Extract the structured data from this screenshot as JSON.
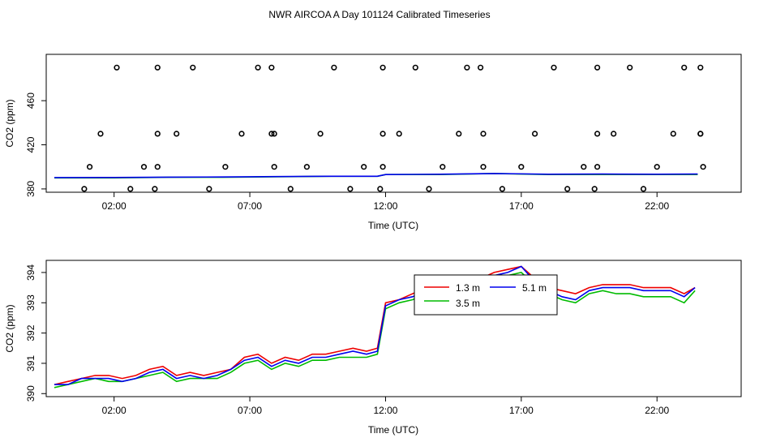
{
  "page_title": "NWR AIRCOA A  Day 101124  Calibrated Timeseries",
  "colors": {
    "red": "#ee0000",
    "green": "#00bb00",
    "blue": "#0000ee",
    "axis": "#000000"
  },
  "chart_data": [
    {
      "type": "scatter",
      "title": "",
      "xlabel": "Time (UTC)",
      "ylabel": "CO2 (ppm)",
      "xlim": [
        -0.5,
        25.1
      ],
      "ylim": [
        377,
        502
      ],
      "xticks": [
        2,
        7,
        12,
        17,
        22
      ],
      "xtick_labels": [
        "02:00",
        "07:00",
        "12:00",
        "17:00",
        "22:00"
      ],
      "yticks": [
        380,
        420,
        460
      ],
      "ytick_labels": [
        "380",
        "420",
        "460"
      ],
      "grid": false,
      "cal_points": {
        "x": [
          0.9,
          1.1,
          1.5,
          2.1,
          2.6,
          3.1,
          3.5,
          3.6,
          3.6,
          3.6,
          4.3,
          4.9,
          5.5,
          6.1,
          6.7,
          7.3,
          7.8,
          7.8,
          7.9,
          7.9,
          8.5,
          9.1,
          9.6,
          10.1,
          10.7,
          11.2,
          11.8,
          11.9,
          11.9,
          11.9,
          12.5,
          13.1,
          13.6,
          14.1,
          14.7,
          15.0,
          15.5,
          15.6,
          15.6,
          16.3,
          17.0,
          17.5,
          18.2,
          18.7,
          19.3,
          19.7,
          19.8,
          19.8,
          19.8,
          20.4,
          21.0,
          21.5,
          22.0,
          22.6,
          23.0,
          23.6,
          23.6,
          23.6,
          23.7
        ],
        "y": [
          380,
          400,
          430,
          490,
          380,
          400,
          380,
          400,
          430,
          490,
          430,
          490,
          380,
          400,
          430,
          490,
          490,
          430,
          430,
          400,
          380,
          400,
          430,
          490,
          380,
          400,
          380,
          400,
          430,
          490,
          430,
          490,
          380,
          400,
          430,
          490,
          490,
          430,
          400,
          380,
          400,
          430,
          490,
          380,
          400,
          380,
          400,
          430,
          490,
          430,
          490,
          380,
          400,
          430,
          490,
          490,
          430,
          430,
          400
        ]
      },
      "series": [
        {
          "color": "#00bb00",
          "x": [
            -0.2,
            2.0,
            4.0,
            6.0,
            8.0,
            10.0,
            11.7,
            12.0,
            14.0,
            16.0,
            18.0,
            20.0,
            22.0,
            23.5
          ],
          "y": [
            390,
            390,
            390.5,
            390.5,
            391,
            391.5,
            391.5,
            393,
            393,
            394,
            393,
            393,
            393,
            393
          ]
        },
        {
          "color": "#0000ee",
          "x": [
            -0.2,
            2.0,
            4.0,
            6.0,
            8.0,
            10.0,
            11.7,
            12.0,
            14.0,
            16.0,
            18.0,
            20.0,
            22.0,
            23.5
          ],
          "y": [
            390.3,
            390.4,
            390.7,
            390.8,
            391.2,
            391.5,
            391.5,
            393,
            393.3,
            394,
            393.3,
            393.5,
            393.3,
            393.5
          ]
        }
      ]
    },
    {
      "type": "line",
      "title": "",
      "xlabel": "Time (UTC)",
      "ylabel": "CO2 (ppm)",
      "xlim": [
        -0.5,
        25.1
      ],
      "ylim": [
        389.9,
        394.4
      ],
      "xticks": [
        2,
        7,
        12,
        17,
        22
      ],
      "xtick_labels": [
        "02:00",
        "07:00",
        "12:00",
        "17:00",
        "22:00"
      ],
      "yticks": [
        390,
        391,
        392,
        393,
        394
      ],
      "ytick_labels": [
        "390",
        "391",
        "392",
        "393",
        "394"
      ],
      "grid": false,
      "legend": {
        "position": "top-center",
        "entries": [
          {
            "name": "1.3 m",
            "color": "#ee0000"
          },
          {
            "name": "3.5 m",
            "color": "#00bb00"
          },
          {
            "name": "5.1 m",
            "color": "#0000ee"
          }
        ]
      },
      "x": [
        -0.2,
        0.3,
        0.8,
        1.3,
        1.8,
        2.3,
        2.8,
        3.3,
        3.8,
        4.3,
        4.8,
        5.3,
        5.8,
        6.3,
        6.8,
        7.3,
        7.8,
        8.3,
        8.8,
        9.3,
        9.8,
        10.3,
        10.8,
        11.3,
        11.7,
        12.0,
        12.5,
        13.0,
        13.5,
        14.0,
        14.5,
        15.0,
        15.5,
        16.0,
        16.5,
        17.0,
        17.5,
        18.0,
        18.5,
        19.0,
        19.5,
        20.0,
        20.5,
        21.0,
        21.5,
        22.0,
        22.5,
        23.0,
        23.4
      ],
      "series": [
        {
          "name": "1.3 m",
          "color": "#ee0000",
          "values": [
            390.3,
            390.4,
            390.5,
            390.6,
            390.6,
            390.5,
            390.6,
            390.8,
            390.9,
            390.6,
            390.7,
            390.6,
            390.7,
            390.8,
            391.2,
            391.3,
            391.0,
            391.2,
            391.1,
            391.3,
            391.3,
            391.4,
            391.5,
            391.4,
            391.5,
            393.0,
            393.1,
            393.3,
            393.5,
            393.4,
            393.6,
            393.7,
            393.8,
            394.0,
            394.1,
            394.2,
            393.8,
            393.5,
            393.4,
            393.3,
            393.5,
            393.6,
            393.6,
            393.6,
            393.5,
            393.5,
            393.5,
            393.3,
            393.5
          ]
        },
        {
          "name": "3.5 m",
          "color": "#00bb00",
          "values": [
            390.2,
            390.3,
            390.4,
            390.5,
            390.4,
            390.4,
            390.5,
            390.6,
            390.7,
            390.4,
            390.5,
            390.5,
            390.5,
            390.7,
            391.0,
            391.1,
            390.8,
            391.0,
            390.9,
            391.1,
            391.1,
            391.2,
            391.2,
            391.2,
            391.3,
            392.8,
            393.0,
            393.1,
            393.3,
            393.2,
            393.4,
            393.5,
            393.6,
            393.8,
            393.9,
            394.0,
            393.6,
            393.3,
            393.1,
            393.0,
            393.3,
            393.4,
            393.3,
            393.3,
            393.2,
            393.2,
            393.2,
            393.0,
            393.4
          ]
        },
        {
          "name": "5.1 m",
          "color": "#0000ee",
          "values": [
            390.3,
            390.3,
            390.5,
            390.5,
            390.5,
            390.4,
            390.5,
            390.7,
            390.8,
            390.5,
            390.6,
            390.5,
            390.6,
            390.8,
            391.1,
            391.2,
            390.9,
            391.1,
            391.0,
            391.2,
            391.2,
            391.3,
            391.4,
            391.3,
            391.4,
            392.9,
            393.1,
            393.2,
            393.4,
            393.3,
            393.5,
            393.6,
            393.7,
            393.9,
            394.0,
            394.2,
            393.7,
            393.4,
            393.2,
            393.1,
            393.4,
            393.5,
            393.5,
            393.5,
            393.4,
            393.4,
            393.4,
            393.2,
            393.5
          ]
        }
      ]
    }
  ]
}
